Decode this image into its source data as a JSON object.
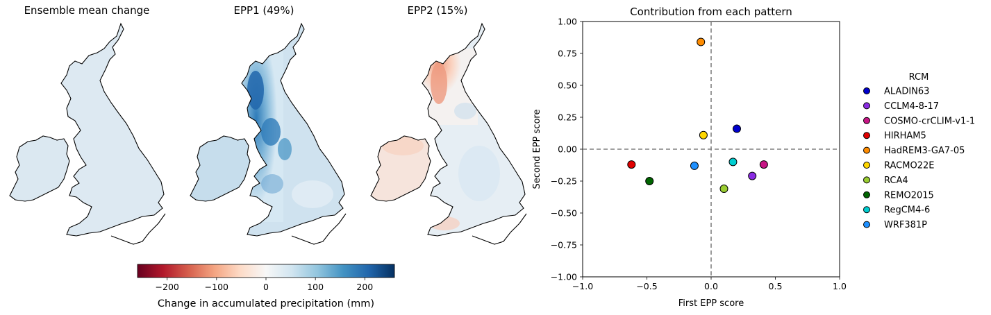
{
  "maps": [
    {
      "title": "Ensemble mean change",
      "style": "mean"
    },
    {
      "title": "EPP1 (49%)",
      "style": "epp1"
    },
    {
      "title": "EPP2 (15%)",
      "style": "epp2"
    }
  ],
  "colorbar": {
    "label": "Change in accumulated precipitation (mm)",
    "min": -260,
    "max": 260,
    "ticks": [
      -200,
      -100,
      0,
      100,
      200
    ],
    "tick_labels": [
      "−200",
      "−100",
      "0",
      "100",
      "200"
    ],
    "colors": [
      "#67001f",
      "#b2182b",
      "#d6604d",
      "#f4a582",
      "#fddbc7",
      "#f7f7f7",
      "#d1e5f0",
      "#92c5de",
      "#4393c3",
      "#2166ac",
      "#053061"
    ]
  },
  "chart_data": {
    "type": "scatter",
    "title": "Contribution from each pattern",
    "xlabel": "First EPP score",
    "ylabel": "Second EPP score",
    "xlim": [
      -1.0,
      1.0
    ],
    "ylim": [
      -1.0,
      1.0
    ],
    "xticks": [
      -1.0,
      -0.5,
      0.0,
      0.5,
      1.0
    ],
    "xtick_labels": [
      "−1.0",
      "−0.5",
      "0.0",
      "0.5",
      "1.0"
    ],
    "yticks": [
      -1.0,
      -0.75,
      -0.5,
      -0.25,
      0.0,
      0.25,
      0.5,
      0.75,
      1.0
    ],
    "ytick_labels": [
      "−1.00",
      "−0.75",
      "−0.50",
      "−0.25",
      "0.00",
      "0.25",
      "0.50",
      "0.75",
      "1.00"
    ],
    "reference_lines": {
      "x": 0,
      "y": 0
    },
    "legend_title": "RCM",
    "legend_position": "right",
    "points": [
      {
        "name": "ALADIN63",
        "x": 0.2,
        "y": 0.16,
        "color": "#0000cd"
      },
      {
        "name": "CCLM4-8-17",
        "x": 0.32,
        "y": -0.21,
        "color": "#8a2be2"
      },
      {
        "name": "COSMO-crCLIM-v1-1",
        "x": 0.41,
        "y": -0.12,
        "color": "#c71585"
      },
      {
        "name": "HIRHAM5",
        "x": -0.62,
        "y": -0.12,
        "color": "#e00000"
      },
      {
        "name": "HadREM3-GA7-05",
        "x": -0.08,
        "y": 0.84,
        "color": "#ff8c00"
      },
      {
        "name": "RACMO22E",
        "x": -0.06,
        "y": 0.11,
        "color": "#ffd700"
      },
      {
        "name": "RCA4",
        "x": 0.1,
        "y": -0.31,
        "color": "#9acd32"
      },
      {
        "name": "REMO2015",
        "x": -0.48,
        "y": -0.25,
        "color": "#006400"
      },
      {
        "name": "RegCM4-6",
        "x": 0.17,
        "y": -0.1,
        "color": "#00ced1"
      },
      {
        "name": "WRF381P",
        "x": -0.13,
        "y": -0.13,
        "color": "#1e90ff"
      }
    ]
  }
}
